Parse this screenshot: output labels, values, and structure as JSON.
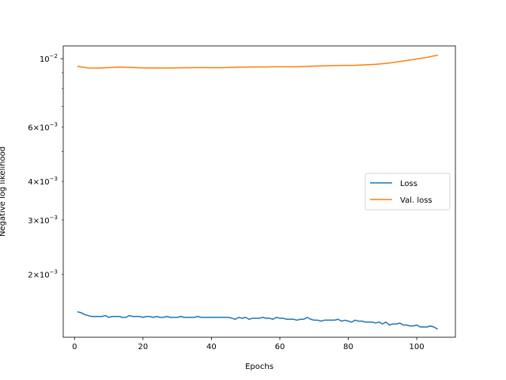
{
  "chart_data": {
    "type": "line",
    "xlabel": "Epochs",
    "ylabel": "Negative log likelihood",
    "y_scale": "log",
    "xlim": [
      -3.3,
      111.3
    ],
    "ylim": [
      0.00125,
      0.011
    ],
    "x_ticks": [
      0,
      20,
      40,
      60,
      80,
      100
    ],
    "x_tick_labels": [
      "0",
      "20",
      "40",
      "60",
      "80",
      "100"
    ],
    "y_major_ticks": [
      0.01
    ],
    "y_major_tick_labels": [
      "10^{-2}"
    ],
    "y_minor_ticks": [
      0.006,
      0.004,
      0.003,
      0.002
    ],
    "y_minor_tick_labels": [
      "6×10^{-3}",
      "4×10^{-3}",
      "3×10^{-3}",
      "2×10^{-3}"
    ],
    "legend_position": "center-right",
    "grid": false,
    "series": [
      {
        "name": "Loss",
        "color": "#1f77b4",
        "x": [
          1,
          2,
          3,
          4,
          5,
          6,
          7,
          8,
          9,
          10,
          11,
          12,
          13,
          14,
          15,
          16,
          17,
          18,
          19,
          20,
          21,
          22,
          23,
          24,
          25,
          26,
          27,
          28,
          29,
          30,
          31,
          32,
          33,
          34,
          35,
          36,
          37,
          38,
          39,
          40,
          41,
          42,
          43,
          44,
          45,
          46,
          47,
          48,
          49,
          50,
          51,
          52,
          53,
          54,
          55,
          56,
          57,
          58,
          59,
          60,
          61,
          62,
          63,
          64,
          65,
          66,
          67,
          68,
          69,
          70,
          71,
          72,
          73,
          74,
          75,
          76,
          77,
          78,
          79,
          80,
          81,
          82,
          83,
          84,
          85,
          86,
          87,
          88,
          89,
          90,
          91,
          92,
          93,
          94,
          95,
          96,
          97,
          98,
          99,
          100,
          101,
          102,
          103,
          104,
          105,
          106
        ],
        "y": [
          0.00151,
          0.0015,
          0.00148,
          0.00147,
          0.00146,
          0.00146,
          0.00146,
          0.00146,
          0.00147,
          0.00145,
          0.00146,
          0.00146,
          0.00146,
          0.00145,
          0.00145,
          0.00147,
          0.00146,
          0.00146,
          0.00146,
          0.00145,
          0.00146,
          0.00146,
          0.00145,
          0.00146,
          0.00145,
          0.00145,
          0.00146,
          0.00145,
          0.00145,
          0.00145,
          0.00146,
          0.00145,
          0.00145,
          0.00145,
          0.00145,
          0.00146,
          0.00145,
          0.00145,
          0.00145,
          0.00145,
          0.00145,
          0.00145,
          0.00145,
          0.00145,
          0.00145,
          0.00144,
          0.00143,
          0.00145,
          0.00144,
          0.00145,
          0.00143,
          0.00144,
          0.00144,
          0.00144,
          0.00145,
          0.00144,
          0.00144,
          0.00143,
          0.00145,
          0.00144,
          0.00144,
          0.00143,
          0.00143,
          0.00143,
          0.00142,
          0.00143,
          0.00143,
          0.00145,
          0.00143,
          0.00142,
          0.00142,
          0.00141,
          0.00142,
          0.00142,
          0.00142,
          0.00142,
          0.00143,
          0.00141,
          0.00142,
          0.00141,
          0.0014,
          0.00142,
          0.00141,
          0.00141,
          0.0014,
          0.0014,
          0.0014,
          0.00139,
          0.0014,
          0.00138,
          0.0014,
          0.00137,
          0.00138,
          0.00138,
          0.00139,
          0.00137,
          0.00137,
          0.00136,
          0.00136,
          0.00137,
          0.00135,
          0.00135,
          0.00135,
          0.00136,
          0.00135,
          0.00133
        ]
      },
      {
        "name": "Val. loss",
        "color": "#ff7f0e",
        "x": [
          1,
          4,
          7,
          10,
          13,
          16,
          19,
          22,
          25,
          28,
          31,
          34,
          37,
          40,
          43,
          46,
          49,
          52,
          55,
          58,
          61,
          64,
          67,
          70,
          73,
          76,
          79,
          82,
          85,
          88,
          91,
          94,
          97,
          100,
          103,
          106
        ],
        "y": [
          0.00944,
          0.00933,
          0.00932,
          0.00936,
          0.00939,
          0.00937,
          0.00934,
          0.00933,
          0.00933,
          0.00933,
          0.00934,
          0.00935,
          0.00936,
          0.00935,
          0.00935,
          0.00937,
          0.00939,
          0.0094,
          0.0094,
          0.00941,
          0.00941,
          0.00941,
          0.00943,
          0.00946,
          0.00948,
          0.0095,
          0.00951,
          0.00952,
          0.00955,
          0.00959,
          0.00965,
          0.00975,
          0.00986,
          0.00998,
          0.0101,
          0.01026
        ]
      }
    ]
  }
}
